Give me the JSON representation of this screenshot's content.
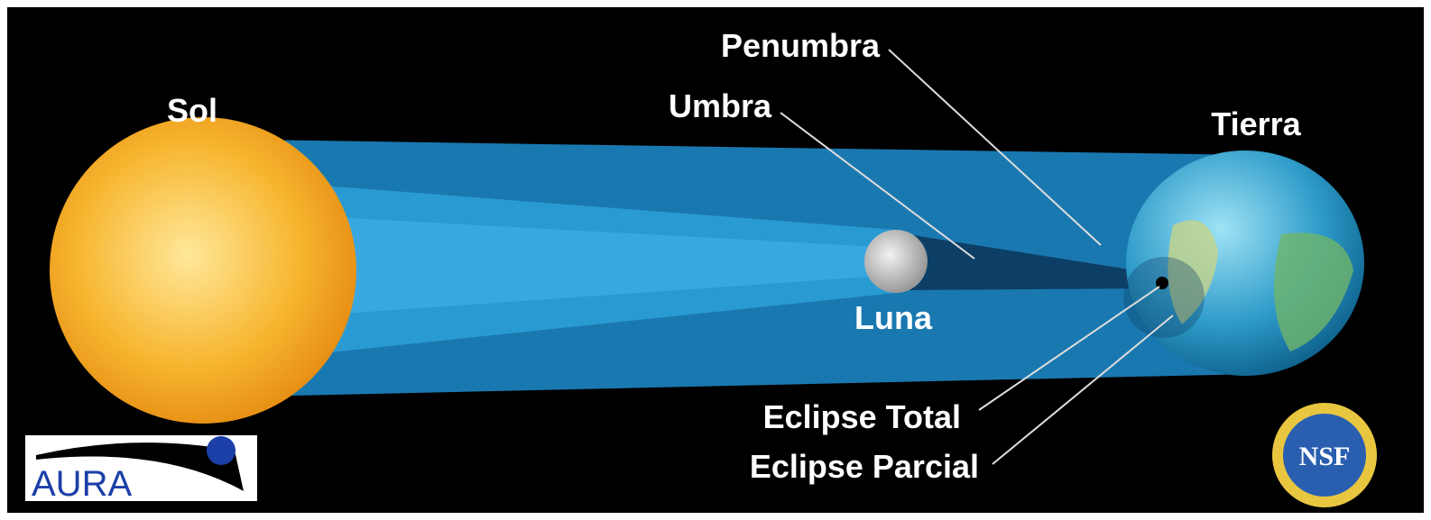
{
  "bodies": {
    "sun": "Sol",
    "moon": "Luna",
    "earth": "Tierra"
  },
  "shadows": {
    "penumbra": "Penumbra",
    "umbra": "Umbra"
  },
  "eclipses": {
    "total": "Eclipse Total",
    "partial": "Eclipse Parcial"
  },
  "logos": {
    "aura": "AURA",
    "nsf": "NSF"
  }
}
